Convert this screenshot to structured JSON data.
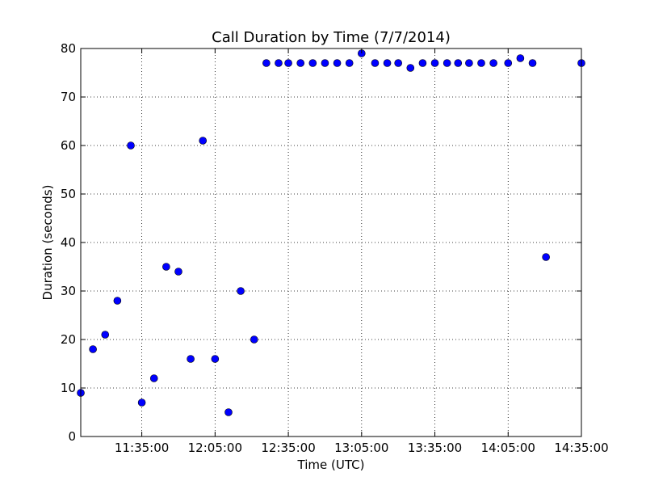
{
  "chart_data": {
    "type": "scatter",
    "title": "Call Duration by Time (7/7/2014)",
    "xlabel": "Time (UTC)",
    "ylabel": "Duration (seconds)",
    "x_ticks": [
      "11:35:00",
      "12:05:00",
      "12:35:00",
      "13:05:00",
      "13:35:00",
      "14:05:00",
      "14:35:00"
    ],
    "y_ticks": [
      0,
      10,
      20,
      30,
      40,
      50,
      60,
      70,
      80
    ],
    "xlim": [
      "11:10:00",
      "14:35:00"
    ],
    "ylim": [
      0,
      80
    ],
    "grid": true,
    "marker_color": "#0000ff",
    "x": [
      "11:10:00",
      "11:15:00",
      "11:20:00",
      "11:25:00",
      "11:30:30",
      "11:35:00",
      "11:40:00",
      "11:45:00",
      "11:50:00",
      "11:55:00",
      "12:00:00",
      "12:05:00",
      "12:10:30",
      "12:15:30",
      "12:21:00",
      "12:26:00",
      "12:31:00",
      "12:35:00",
      "12:40:00",
      "12:45:00",
      "12:50:00",
      "12:55:00",
      "13:00:00",
      "13:05:00",
      "13:10:30",
      "13:15:30",
      "13:20:00",
      "13:25:00",
      "13:30:00",
      "13:35:00",
      "13:40:00",
      "13:44:30",
      "13:49:00",
      "13:54:00",
      "13:59:00",
      "14:05:00",
      "14:10:00",
      "14:15:00",
      "14:20:30",
      "14:35:00"
    ],
    "y": [
      9,
      18,
      21,
      28,
      60,
      7,
      12,
      35,
      34,
      16,
      61,
      16,
      5,
      30,
      20,
      77,
      77,
      77,
      77,
      77,
      77,
      77,
      77,
      79,
      77,
      77,
      77,
      76,
      77,
      77,
      77,
      77,
      77,
      77,
      77,
      77,
      78,
      77,
      37,
      77
    ]
  }
}
